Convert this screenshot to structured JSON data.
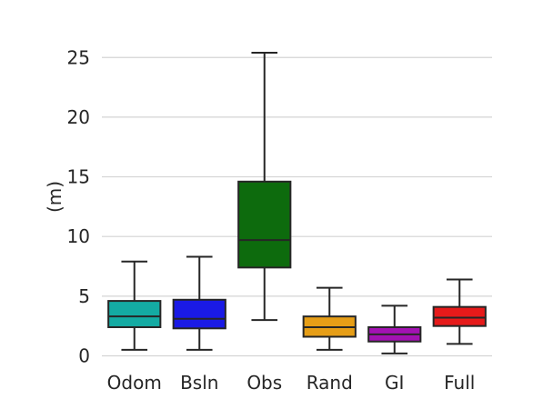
{
  "chart_data": {
    "type": "box",
    "categories": [
      "Odom",
      "Bsln",
      "Obs",
      "Rand",
      "GI",
      "Full"
    ],
    "xlabel": "",
    "ylabel": "(m)",
    "ylim": [
      -0.8,
      27
    ],
    "yticks": [
      0,
      5,
      10,
      15,
      20,
      25
    ],
    "grid": true,
    "colors": [
      "#14aba3",
      "#1a1ae6",
      "#0d6b0d",
      "#e69e17",
      "#a312b3",
      "#e61a1a"
    ],
    "boxes": [
      {
        "category": "Odom",
        "whisker_low": 0.5,
        "q1": 2.4,
        "median": 3.3,
        "q3": 4.6,
        "whisker_high": 7.9
      },
      {
        "category": "Bsln",
        "whisker_low": 0.5,
        "q1": 2.3,
        "median": 3.1,
        "q3": 4.7,
        "whisker_high": 8.3
      },
      {
        "category": "Obs",
        "whisker_low": 3.0,
        "q1": 7.4,
        "median": 9.7,
        "q3": 14.6,
        "whisker_high": 25.4
      },
      {
        "category": "Rand",
        "whisker_low": 0.5,
        "q1": 1.6,
        "median": 2.4,
        "q3": 3.3,
        "whisker_high": 5.7
      },
      {
        "category": "GI",
        "whisker_low": 0.2,
        "q1": 1.2,
        "median": 1.8,
        "q3": 2.4,
        "whisker_high": 4.2
      },
      {
        "category": "Full",
        "whisker_low": 1.0,
        "q1": 2.5,
        "median": 3.2,
        "q3": 4.1,
        "whisker_high": 6.4
      }
    ]
  }
}
